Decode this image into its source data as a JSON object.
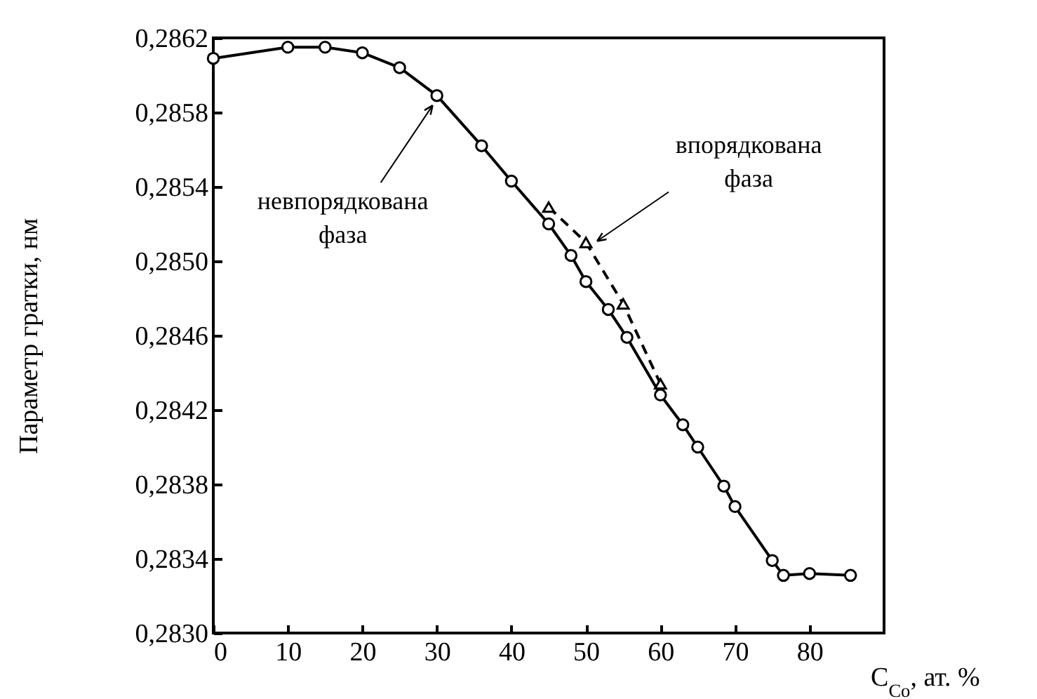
{
  "chart_data": {
    "type": "line",
    "xlabel": "C$_{Co}$, ат. %",
    "ylabel": "Параметр гратки, нм",
    "xlim": [
      0,
      90
    ],
    "xticks": [
      0,
      10,
      20,
      30,
      40,
      50,
      60,
      70,
      80
    ],
    "ylim": [
      0.283,
      0.2862
    ],
    "yticks": [
      {
        "value": 0.283,
        "label": "0,2830"
      },
      {
        "value": 0.2834,
        "label": "0,2834"
      },
      {
        "value": 0.2838,
        "label": "0,2838"
      },
      {
        "value": 0.2842,
        "label": "0,2842"
      },
      {
        "value": 0.2846,
        "label": "0,2846"
      },
      {
        "value": 0.285,
        "label": "0,2850"
      },
      {
        "value": 0.2854,
        "label": "0,2854"
      },
      {
        "value": 0.2858,
        "label": "0,2858"
      },
      {
        "value": 0.2862,
        "label": "0,2862"
      }
    ],
    "grid": false,
    "series": [
      {
        "color": "#000000",
        "marker": "circle",
        "line_style": "solid",
        "x": [
          0,
          10,
          15,
          20,
          25,
          30,
          36,
          40,
          45,
          48,
          50,
          53,
          55.5,
          60,
          63,
          65,
          68.5,
          70,
          75,
          76.5,
          80,
          85.5
        ],
        "values": [
          0.28609,
          0.28615,
          0.28615,
          0.28612,
          0.28604,
          0.28589,
          0.28562,
          0.28543,
          0.2852,
          0.28503,
          0.28489,
          0.28474,
          0.28459,
          0.28428,
          0.28412,
          0.284,
          0.28379,
          0.28368,
          0.28339,
          0.28331,
          0.28332,
          0.28331
        ]
      },
      {
        "color": "#000000",
        "marker": "triangle",
        "line_style": "dashed",
        "x": [
          45,
          50,
          55,
          60
        ],
        "values": [
          0.28529,
          0.2851,
          0.28477,
          0.28434
        ]
      }
    ],
    "annotations": [
      {
        "text": "невпорядкована\nфаза",
        "x": 30,
        "y": 0.28589
      },
      {
        "text": "впорядкована\nфаза",
        "x": 50,
        "y": 0.2851
      }
    ]
  }
}
